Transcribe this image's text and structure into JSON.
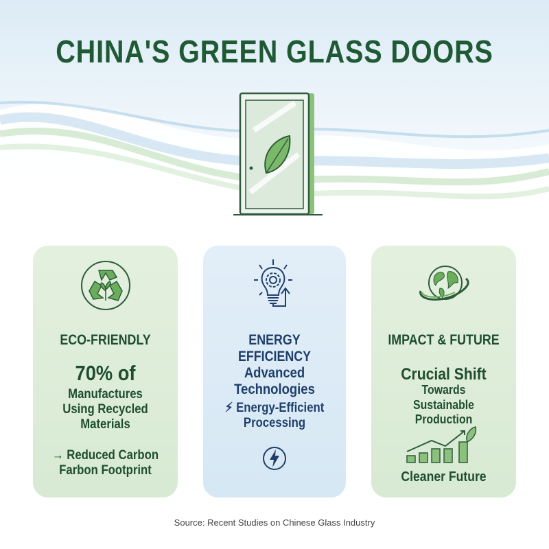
{
  "title": "CHINA'S GREEN GLASS DOORS",
  "colors": {
    "title": "#1f5a35",
    "green_card": "#dcecd7",
    "blue_card": "#dbeaf5",
    "green_text": "#1f4d30",
    "blue_text": "#1f3f6a",
    "accent_green": "#6aad5a"
  },
  "hero": {
    "icon": "glass-door-with-leaf-icon"
  },
  "cards": [
    {
      "icon": "recycle-plant-icon",
      "heading": "ECO-FRIENDLY",
      "stat": "70% of",
      "lines": [
        "Manufactures",
        "Using Recycled",
        "Materials"
      ],
      "bullet_icon": "arrow-right-icon",
      "bullet": [
        "→ Reduced Carbon",
        "Farbon Footprint"
      ]
    },
    {
      "icon": "lightbulb-gear-icon",
      "heading": "ENERGY EFFICIENCY",
      "lines": [
        "Advanced",
        "Technologies"
      ],
      "bullet_icon": "lightning-icon",
      "bullet": [
        "Energy-Efficient",
        "Processing"
      ],
      "footer_icon": "lightning-circle-icon"
    },
    {
      "icon": "globe-orbit-icon",
      "heading": "IMPACT & FUTURE",
      "stat": "Crucial Shift",
      "lines": [
        "Towards",
        "Sustainable",
        "Production"
      ],
      "footer_icon": "growth-chart-leaf-icon",
      "footer": "Cleaner Future"
    }
  ],
  "source": "Source: Recent Studies on Chinese Glass Industry"
}
